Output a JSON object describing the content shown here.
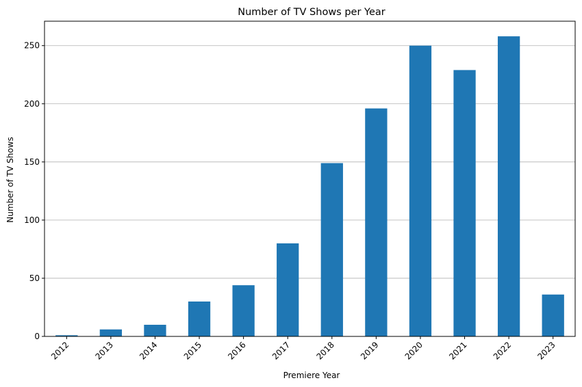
{
  "chart_data": {
    "type": "bar",
    "title": "Number of TV Shows per Year",
    "xlabel": "Premiere Year",
    "ylabel": "Number of TV Shows",
    "categories": [
      "2012",
      "2013",
      "2014",
      "2015",
      "2016",
      "2017",
      "2018",
      "2019",
      "2020",
      "2021",
      "2022",
      "2023"
    ],
    "values": [
      1,
      6,
      10,
      30,
      44,
      80,
      149,
      196,
      250,
      229,
      258,
      36
    ],
    "ylim": [
      0,
      271
    ],
    "yticks": [
      0,
      50,
      100,
      150,
      200,
      250
    ],
    "grid": "y-axis only",
    "bar_color": "#1f77b4",
    "grid_color": "#b0b0b0",
    "legend": "none"
  }
}
